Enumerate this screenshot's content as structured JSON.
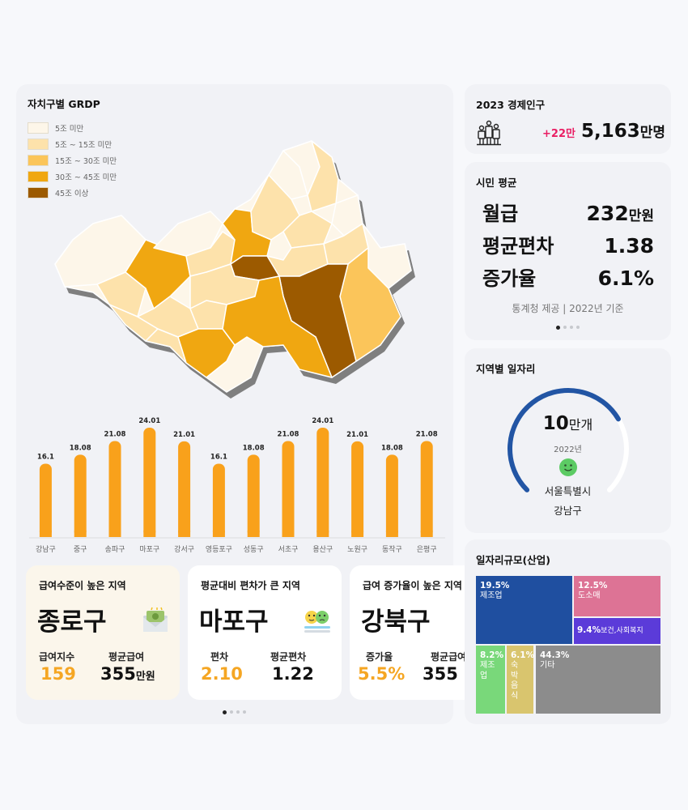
{
  "grdp": {
    "title": "자치구별 GRDP",
    "legend": [
      {
        "label": "5조 미만",
        "color": "#fdf6e9"
      },
      {
        "label": "5조 ~ 15조 미만",
        "color": "#fde2ab"
      },
      {
        "label": "15조 ~ 30조 미만",
        "color": "#fbc55a"
      },
      {
        "label": "30조 ~ 45조 미만",
        "color": "#f0a711"
      },
      {
        "label": "45조 이상",
        "color": "#9c5a00"
      }
    ]
  },
  "chart_data": {
    "type": "bar",
    "categories": [
      "강남구",
      "중구",
      "송파구",
      "마포구",
      "강서구",
      "영등포구",
      "성동구",
      "서초구",
      "용산구",
      "노원구",
      "동작구",
      "은평구"
    ],
    "values": [
      16.1,
      18.08,
      21.08,
      24.01,
      21.01,
      16.1,
      18.08,
      21.08,
      24.01,
      21.01,
      18.08,
      21.08
    ],
    "value_labels": [
      "16.1",
      "18.08",
      "21.08",
      "24.01",
      "21.01",
      "16.1",
      "18.08",
      "21.08",
      "24.01",
      "21.01",
      "18.08",
      "21.08"
    ],
    "color": "#f9a11b",
    "title": "",
    "xlabel": "",
    "ylabel": "",
    "ylim": [
      0,
      25
    ]
  },
  "cards": [
    {
      "title": "급여수준이 높은 지역",
      "region": "종로구",
      "icon": "money-envelope-icon",
      "stat1_label": "급여지수",
      "stat1_value": "159",
      "stat2_label": "평균급여",
      "stat2_value": "355",
      "stat2_unit": "만원"
    },
    {
      "title": "평균대비 편차가 큰 지역",
      "region": "마포구",
      "icon": "emoji-faces-icon",
      "stat1_label": "편차",
      "stat1_value": "2.10",
      "stat2_label": "평균편차",
      "stat2_value": "1.22"
    },
    {
      "title": "급여 증가율이 높은 지역",
      "region": "강북구",
      "icon": "",
      "stat1_label": "증가율",
      "stat1_value": "5.5%",
      "stat2_label": "평균급여",
      "stat2_value": "355"
    }
  ],
  "population": {
    "title": "2023 경제인구",
    "change": "+22만",
    "total": "5,163",
    "unit": "만명",
    "icon": "people-group-icon"
  },
  "citizen": {
    "title": "시민 평균",
    "rows": [
      {
        "label": "월급",
        "value": "232",
        "unit": "만원"
      },
      {
        "label": "평균편차",
        "value": "1.38",
        "unit": ""
      },
      {
        "label": "증가율",
        "value": "6.1%",
        "unit": ""
      }
    ],
    "source": "통계청 제공 | 2022년 기준"
  },
  "jobs": {
    "title": "지역별 일자리",
    "value": "10",
    "unit": "만개",
    "year": "2022년",
    "city": "서울특별시",
    "district": "강남구",
    "gauge_fraction": 0.72,
    "color": "#2255a4"
  },
  "industry": {
    "title": "일자리규모(산업)",
    "cells": [
      {
        "pct": "19.5%",
        "label": "제조업",
        "color": "#1f4fa0"
      },
      {
        "pct": "12.5%",
        "label": "도소매",
        "color": "#dd7395"
      },
      {
        "pct": "9.4%",
        "label": "보건,사회복지",
        "color": "#5b3bd9"
      },
      {
        "pct": "8.2%",
        "label": "제조업",
        "color": "#79d87a"
      },
      {
        "pct": "6.1%",
        "label": "숙박음식",
        "color": "#d9c56e"
      },
      {
        "pct": "44.3%",
        "label": "기타",
        "color": "#8c8c8c"
      }
    ]
  }
}
